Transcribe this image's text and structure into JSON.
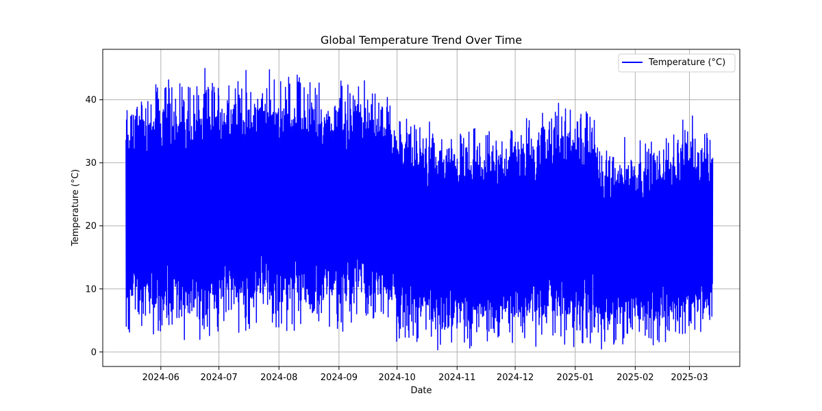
{
  "chart_data": {
    "type": "line",
    "title": "Global Temperature Trend Over Time",
    "xlabel": "Date",
    "ylabel": "Temperature (°C)",
    "x_range": [
      "2024-05-14",
      "2025-03-13"
    ],
    "xlim": [
      "2024-05-02",
      "2025-03-27"
    ],
    "ylim": [
      -2.3,
      48.0
    ],
    "x_ticks": [
      "2024-06",
      "2024-07",
      "2024-08",
      "2024-09",
      "2024-10",
      "2024-11",
      "2024-12",
      "2025-01",
      "2025-02",
      "2025-03"
    ],
    "y_ticks": [
      0,
      10,
      20,
      30,
      40
    ],
    "grid": true,
    "legend_position": "top-right",
    "series": [
      {
        "name": "Temperature (°C)",
        "color": "#0000ff",
        "envelope": [
          {
            "date": "2024-05-14",
            "min": 1.0,
            "max": 42.0
          },
          {
            "date": "2024-05-25",
            "min": 3.0,
            "max": 44.0
          },
          {
            "date": "2024-06-01",
            "min": 0.0,
            "max": 45.5
          },
          {
            "date": "2024-06-15",
            "min": 1.0,
            "max": 45.3
          },
          {
            "date": "2024-07-01",
            "min": 1.0,
            "max": 45.5
          },
          {
            "date": "2024-07-10",
            "min": 0.5,
            "max": 45.6
          },
          {
            "date": "2024-07-20",
            "min": 2.0,
            "max": 45.0
          },
          {
            "date": "2024-07-22",
            "min": 5.0,
            "max": 45.0
          },
          {
            "date": "2024-07-24",
            "min": 3.0,
            "max": 45.6
          },
          {
            "date": "2024-08-01",
            "min": 1.0,
            "max": 45.5
          },
          {
            "date": "2024-08-15",
            "min": 2.0,
            "max": 45.5
          },
          {
            "date": "2024-08-25",
            "min": 3.0,
            "max": 44.0
          },
          {
            "date": "2024-09-01",
            "min": 2.0,
            "max": 44.8
          },
          {
            "date": "2024-09-15",
            "min": 4.0,
            "max": 44.0
          },
          {
            "date": "2024-09-25",
            "min": 2.0,
            "max": 42.5
          },
          {
            "date": "2024-10-01",
            "min": 0.0,
            "max": 40.0
          },
          {
            "date": "2024-10-10",
            "min": 0.5,
            "max": 37.8
          },
          {
            "date": "2024-10-20",
            "min": 0.0,
            "max": 37.0
          },
          {
            "date": "2024-11-01",
            "min": 0.0,
            "max": 36.3
          },
          {
            "date": "2024-11-10",
            "min": 0.0,
            "max": 36.5
          },
          {
            "date": "2024-11-20",
            "min": -0.2,
            "max": 35.5
          },
          {
            "date": "2024-12-01",
            "min": -0.2,
            "max": 38.0
          },
          {
            "date": "2024-12-10",
            "min": -0.2,
            "max": 38.5
          },
          {
            "date": "2024-12-20",
            "min": -0.2,
            "max": 41.3
          },
          {
            "date": "2025-01-01",
            "min": -0.2,
            "max": 39.8
          },
          {
            "date": "2025-01-10",
            "min": -0.2,
            "max": 41.4
          },
          {
            "date": "2025-01-15",
            "min": -0.2,
            "max": 34.0
          },
          {
            "date": "2025-02-01",
            "min": -0.2,
            "max": 35.0
          },
          {
            "date": "2025-02-15",
            "min": -0.2,
            "max": 35.2
          },
          {
            "date": "2025-03-01",
            "min": -0.2,
            "max": 38.0
          },
          {
            "date": "2025-03-13",
            "min": 1.0,
            "max": 37.3
          }
        ]
      }
    ]
  }
}
